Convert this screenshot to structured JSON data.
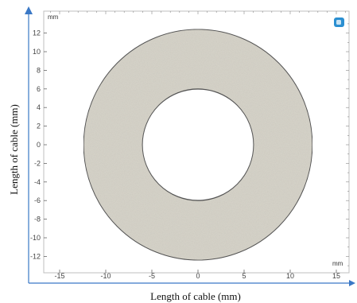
{
  "units": {
    "top_left": "mm",
    "bottom_right": "mm"
  },
  "axis_titles": {
    "x": "Length of cable (mm)",
    "y": "Length of cable (mm)"
  },
  "x_ticks": [
    {
      "value": -15,
      "label": "-15"
    },
    {
      "value": -10,
      "label": "-10"
    },
    {
      "value": -5,
      "label": "-5"
    },
    {
      "value": 0,
      "label": "0"
    },
    {
      "value": 5,
      "label": "5"
    },
    {
      "value": 10,
      "label": "10"
    },
    {
      "value": 15,
      "label": "15"
    }
  ],
  "y_ticks": [
    {
      "value": 12,
      "label": "12"
    },
    {
      "value": 10,
      "label": "10"
    },
    {
      "value": 8,
      "label": "8"
    },
    {
      "value": 6,
      "label": "6"
    },
    {
      "value": 4,
      "label": "4"
    },
    {
      "value": 2,
      "label": "2"
    },
    {
      "value": 0,
      "label": "0"
    },
    {
      "value": -2,
      "label": "-2"
    },
    {
      "value": -4,
      "label": "-4"
    },
    {
      "value": -6,
      "label": "-6"
    },
    {
      "value": -8,
      "label": "-8"
    },
    {
      "value": -10,
      "label": "-10"
    },
    {
      "value": -12,
      "label": "-12"
    }
  ],
  "geometry": {
    "outer_radius_mm": 12.4,
    "inner_radius_mm": 6.0,
    "center_mm": [
      0,
      0
    ]
  },
  "colors": {
    "ring_fill": "#d6d3c9",
    "ring_stroke": "#555555",
    "axis_accent": "#3a78c6",
    "corner_icon": "#2b8fd1"
  },
  "icons": {
    "corner": "view-cube-icon"
  }
}
